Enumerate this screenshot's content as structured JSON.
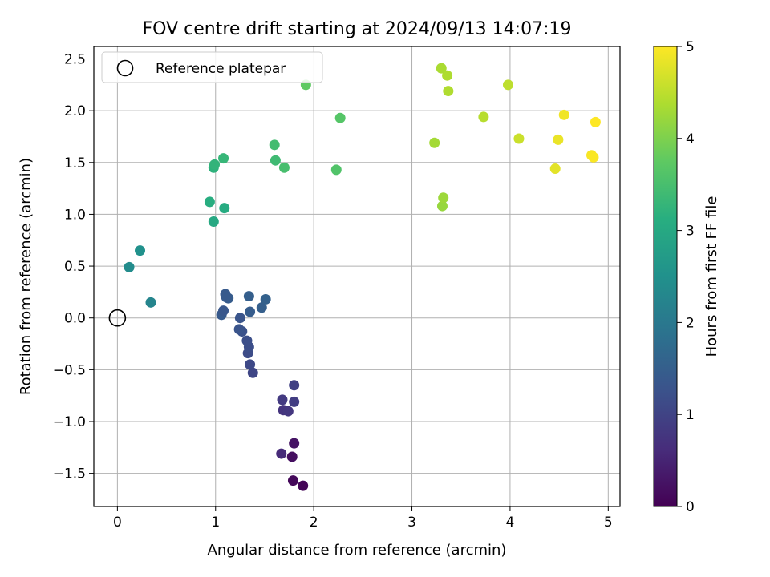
{
  "chart_data": {
    "type": "scatter",
    "title": "FOV centre drift starting at 2024/09/13 14:07:19",
    "xlabel": "Angular distance from reference (arcmin)",
    "ylabel": "Rotation from reference (arcmin)",
    "xlim": [
      -0.24,
      5.12
    ],
    "ylim": [
      -1.82,
      2.62
    ],
    "xticks": [
      "0",
      "1",
      "2",
      "3",
      "4",
      "5"
    ],
    "yticks": [
      "−1.5",
      "−1.0",
      "−0.5",
      "0.0",
      "0.5",
      "1.0",
      "1.5",
      "2.0",
      "2.5"
    ],
    "grid": true,
    "legend": {
      "placement": "top-left",
      "label": "Reference platepar"
    },
    "reference_point": {
      "x": 0.0,
      "y": 0.0
    },
    "colorbar": {
      "label": "Hours from first FF file",
      "range": [
        0,
        5
      ],
      "ticks": [
        "0",
        "1",
        "2",
        "3",
        "4",
        "5"
      ],
      "colormap": "viridis"
    },
    "points": [
      {
        "x": 1.89,
        "y": -1.62,
        "h": 0.05
      },
      {
        "x": 1.79,
        "y": -1.57,
        "h": 0.1
      },
      {
        "x": 1.78,
        "y": -1.34,
        "h": 0.2
      },
      {
        "x": 1.8,
        "y": -1.21,
        "h": 0.25
      },
      {
        "x": 1.67,
        "y": -1.31,
        "h": 0.6
      },
      {
        "x": 1.69,
        "y": -0.89,
        "h": 0.75
      },
      {
        "x": 1.74,
        "y": -0.9,
        "h": 0.8
      },
      {
        "x": 1.68,
        "y": -0.79,
        "h": 0.85
      },
      {
        "x": 1.8,
        "y": -0.81,
        "h": 0.9
      },
      {
        "x": 1.8,
        "y": -0.65,
        "h": 0.95
      },
      {
        "x": 1.38,
        "y": -0.53,
        "h": 1.05
      },
      {
        "x": 1.35,
        "y": -0.45,
        "h": 1.1
      },
      {
        "x": 1.33,
        "y": -0.34,
        "h": 1.15
      },
      {
        "x": 1.34,
        "y": -0.28,
        "h": 1.18
      },
      {
        "x": 1.32,
        "y": -0.22,
        "h": 1.2
      },
      {
        "x": 1.27,
        "y": -0.13,
        "h": 1.25
      },
      {
        "x": 1.24,
        "y": -0.11,
        "h": 1.28
      },
      {
        "x": 1.25,
        "y": 0.0,
        "h": 1.3
      },
      {
        "x": 1.06,
        "y": 0.03,
        "h": 1.4
      },
      {
        "x": 1.08,
        "y": 0.07,
        "h": 1.35
      },
      {
        "x": 1.35,
        "y": 0.06,
        "h": 1.45
      },
      {
        "x": 1.47,
        "y": 0.1,
        "h": 1.5
      },
      {
        "x": 1.13,
        "y": 0.19,
        "h": 1.45
      },
      {
        "x": 1.11,
        "y": 0.2,
        "h": 1.42
      },
      {
        "x": 1.1,
        "y": 0.23,
        "h": 1.4
      },
      {
        "x": 1.34,
        "y": 0.21,
        "h": 1.5
      },
      {
        "x": 1.51,
        "y": 0.18,
        "h": 1.55
      },
      {
        "x": 0.34,
        "y": 0.15,
        "h": 2.25
      },
      {
        "x": 0.12,
        "y": 0.49,
        "h": 2.4
      },
      {
        "x": 0.23,
        "y": 0.65,
        "h": 2.5
      },
      {
        "x": 0.98,
        "y": 0.93,
        "h": 3.0
      },
      {
        "x": 1.09,
        "y": 1.06,
        "h": 3.05
      },
      {
        "x": 0.94,
        "y": 1.12,
        "h": 3.1
      },
      {
        "x": 0.98,
        "y": 1.45,
        "h": 3.2
      },
      {
        "x": 0.99,
        "y": 1.48,
        "h": 3.25
      },
      {
        "x": 1.08,
        "y": 1.54,
        "h": 3.3
      },
      {
        "x": 1.61,
        "y": 1.52,
        "h": 3.4
      },
      {
        "x": 1.7,
        "y": 1.45,
        "h": 3.5
      },
      {
        "x": 1.6,
        "y": 1.67,
        "h": 3.45
      },
      {
        "x": 2.23,
        "y": 1.43,
        "h": 3.6
      },
      {
        "x": 2.27,
        "y": 1.93,
        "h": 3.65
      },
      {
        "x": 1.92,
        "y": 2.25,
        "h": 3.75
      },
      {
        "x": 3.31,
        "y": 1.08,
        "h": 4.2
      },
      {
        "x": 3.32,
        "y": 1.16,
        "h": 4.25
      },
      {
        "x": 3.23,
        "y": 1.69,
        "h": 4.3
      },
      {
        "x": 3.3,
        "y": 2.41,
        "h": 4.35
      },
      {
        "x": 3.36,
        "y": 2.34,
        "h": 4.38
      },
      {
        "x": 3.37,
        "y": 2.19,
        "h": 4.4
      },
      {
        "x": 3.73,
        "y": 1.94,
        "h": 4.45
      },
      {
        "x": 3.98,
        "y": 2.25,
        "h": 4.5
      },
      {
        "x": 4.09,
        "y": 1.73,
        "h": 4.6
      },
      {
        "x": 4.46,
        "y": 1.44,
        "h": 4.8
      },
      {
        "x": 4.49,
        "y": 1.72,
        "h": 4.85
      },
      {
        "x": 4.55,
        "y": 1.96,
        "h": 4.9
      },
      {
        "x": 4.83,
        "y": 1.57,
        "h": 4.95
      },
      {
        "x": 4.85,
        "y": 1.55,
        "h": 4.98
      },
      {
        "x": 4.87,
        "y": 1.89,
        "h": 5.0
      }
    ]
  }
}
